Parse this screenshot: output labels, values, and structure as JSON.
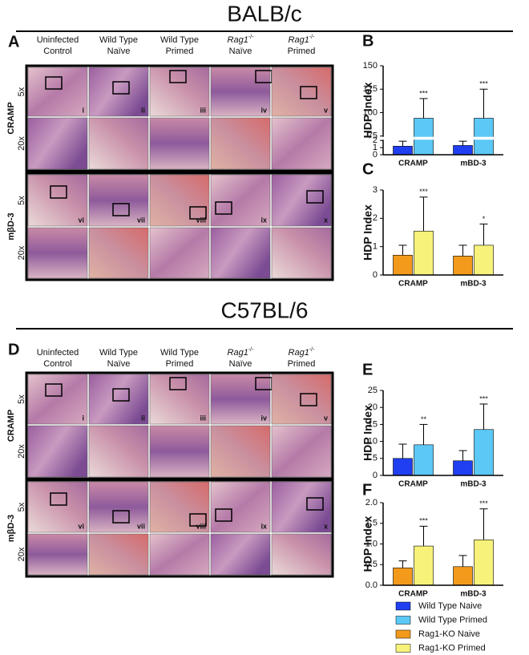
{
  "figure": {
    "strain_titles": [
      "BALB/c",
      "C57BL/6"
    ],
    "panel_letters": [
      "A",
      "B",
      "C",
      "D",
      "E",
      "F"
    ],
    "column_headers": [
      [
        "Uninfected",
        "Control"
      ],
      [
        "Wild Type",
        "Naïve"
      ],
      [
        "Wild Type",
        "Primed"
      ],
      [
        "Rag1",
        "-/-",
        "Naïve"
      ],
      [
        "Rag1",
        "-/-",
        "Primed"
      ]
    ],
    "row_labels": [
      "CRAMP",
      "mβD-3"
    ],
    "magnifications": [
      "5x",
      "20x"
    ],
    "numerals": [
      "i",
      "ii",
      "iii",
      "iv",
      "v",
      "vi",
      "vii",
      "viii",
      "ix",
      "x"
    ]
  },
  "chart_data": [
    {
      "type": "bar",
      "ylabel": "HDP Index",
      "categories": [
        "CRAMP",
        "mBD-3"
      ],
      "series": [
        {
          "name": "Wild Type Naive",
          "color": "#1f3ff0",
          "values": [
            1.2,
            1.3
          ],
          "errors": [
            0.7,
            0.6
          ]
        },
        {
          "name": "Wild Type Primed",
          "color": "#5bc8f5",
          "values": [
            94,
            94
          ],
          "errors": [
            21,
            31
          ],
          "significance": [
            "***",
            "***"
          ]
        }
      ],
      "ylim": [
        0,
        150
      ],
      "yticks": [
        0,
        1,
        2,
        75,
        100,
        125,
        150
      ],
      "axis_break": [
        2,
        75
      ]
    },
    {
      "type": "bar",
      "ylabel": "HDP Index",
      "categories": [
        "CRAMP",
        "mBD-3"
      ],
      "series": [
        {
          "name": "Rag1-KO Naive",
          "color": "#f39a1c",
          "values": [
            0.7,
            0.67
          ],
          "errors": [
            0.35,
            0.38
          ]
        },
        {
          "name": "Rag1-KO Primed",
          "color": "#f7f27a",
          "values": [
            1.55,
            1.05
          ],
          "errors": [
            1.2,
            0.75
          ],
          "significance": [
            "***",
            "*"
          ]
        }
      ],
      "ylim": [
        0,
        3
      ],
      "yticks": [
        0,
        1,
        2,
        3
      ]
    },
    {
      "type": "bar",
      "ylabel": "HDP Index",
      "categories": [
        "CRAMP",
        "mBD-3"
      ],
      "series": [
        {
          "name": "Wild Type Naive",
          "color": "#1f3ff0",
          "values": [
            5,
            4.3
          ],
          "errors": [
            4.2,
            3
          ]
        },
        {
          "name": "Wild Type Primed",
          "color": "#5bc8f5",
          "values": [
            9,
            13.5
          ],
          "errors": [
            6,
            7.5
          ],
          "significance": [
            "**",
            "***"
          ]
        }
      ],
      "ylim": [
        0,
        25
      ],
      "yticks": [
        0,
        5,
        10,
        15,
        20,
        25
      ]
    },
    {
      "type": "bar",
      "ylabel": "HDP Index",
      "categories": [
        "CRAMP",
        "mBD-3"
      ],
      "series": [
        {
          "name": "Rag1-KO Naive",
          "color": "#f39a1c",
          "values": [
            0.42,
            0.45
          ],
          "errors": [
            0.17,
            0.27
          ]
        },
        {
          "name": "Rag1-KO Primed",
          "color": "#f7f27a",
          "values": [
            0.95,
            1.1
          ],
          "errors": [
            0.48,
            0.75
          ],
          "significance": [
            "***",
            "***"
          ]
        }
      ],
      "ylim": [
        0,
        2
      ],
      "yticks": [
        {
          "value": 0,
          "label": "0.0"
        },
        {
          "value": 0.5,
          "label": "0.5"
        },
        {
          "value": 1,
          "label": "1.0"
        },
        {
          "value": 1.5,
          "label": "1.5"
        },
        {
          "value": 2,
          "label": "2.0"
        }
      ]
    }
  ]
}
